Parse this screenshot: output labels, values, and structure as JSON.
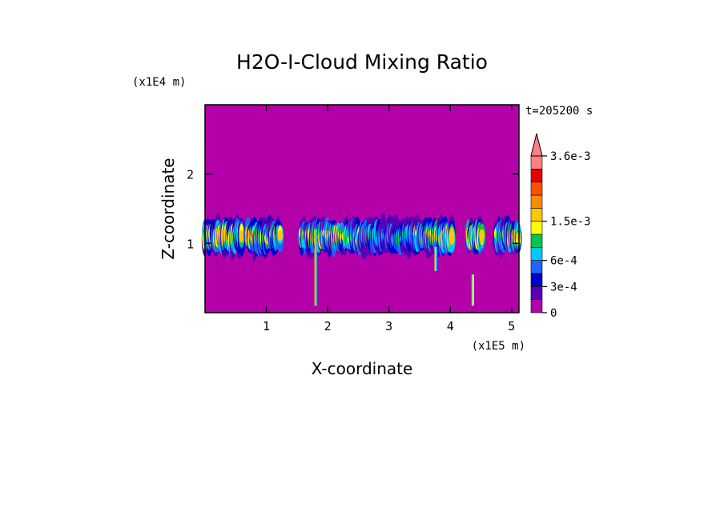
{
  "chart_data": {
    "type": "heatmap",
    "title": "H2O-I-Cloud Mixing Ratio",
    "xlabel": "X-coordinate",
    "ylabel": "Z-coordinate",
    "x_unit": "(x1E5 m)",
    "y_unit": "(x1E4 m)",
    "time_label": "t=205200 s",
    "xlim": [
      0,
      5.12
    ],
    "ylim": [
      0,
      3.0
    ],
    "x_ticks": [
      "1",
      "2",
      "3",
      "4",
      "5"
    ],
    "y_ticks": [
      "1",
      "2"
    ],
    "x_tick_values": [
      1,
      2,
      3,
      4,
      5
    ],
    "y_tick_values": [
      1,
      2
    ],
    "background_color": "#b400a8",
    "colorbar": {
      "colors": [
        "#b400a8",
        "#5a00b4",
        "#0000c8",
        "#1e64ff",
        "#00c8ff",
        "#00c850",
        "#ffff00",
        "#ffc800",
        "#ff8c00",
        "#ff5000",
        "#e60000",
        "#ff8080"
      ],
      "labels": [
        "0",
        "3e-4",
        "6e-4",
        "1.5e-3",
        "3.6e-3"
      ],
      "label_values": [
        0,
        0.0003,
        0.0006,
        0.0015,
        0.0036
      ],
      "extend": "max"
    },
    "cloud_layer": {
      "z_center": 1.1,
      "z_thickness": 0.5
    },
    "shafts": [
      {
        "x": 1.81,
        "z_top": 1.2,
        "z_bottom": 0.1,
        "colors": [
          "#ffc800",
          "#ff8c00",
          "#00c8ff"
        ]
      },
      {
        "x": 3.77,
        "z_top": 0.95,
        "z_bottom": 0.6,
        "colors": [
          "#ffff00",
          "#00c8ff"
        ]
      },
      {
        "x": 4.37,
        "z_top": 0.55,
        "z_bottom": 0.1,
        "colors": [
          "#00c8ff",
          "#ffff00"
        ]
      }
    ]
  }
}
